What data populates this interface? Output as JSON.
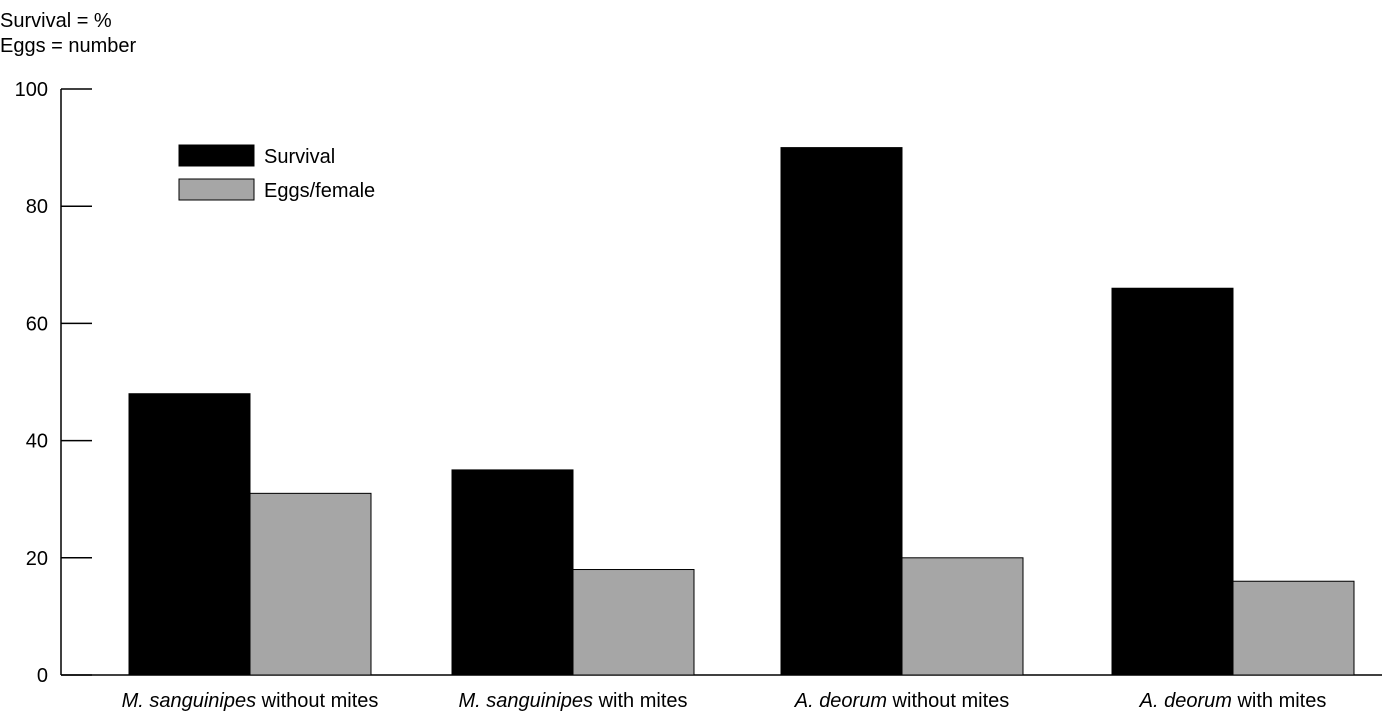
{
  "chart_data": {
    "type": "bar",
    "ylabel_lines": [
      "Survival = %",
      "Eggs = number"
    ],
    "categories": [
      {
        "italic": "M. sanguinipes",
        "rest": " without mites"
      },
      {
        "italic": "M. sanguinipes",
        "rest": " with mites"
      },
      {
        "italic": "A. deorum",
        "rest": " without mites"
      },
      {
        "italic": "A. deorum",
        "rest": " with mites"
      }
    ],
    "series": [
      {
        "name": "Survival",
        "values": [
          48,
          35,
          90,
          66
        ],
        "color": "#000000"
      },
      {
        "name": "Eggs/female",
        "values": [
          31,
          18,
          20,
          16
        ],
        "color": "#a6a6a6"
      }
    ],
    "ylim": [
      0,
      100
    ],
    "yticks": [
      0,
      20,
      40,
      60,
      80,
      100
    ],
    "legend_position": "top-left",
    "grid": false
  }
}
